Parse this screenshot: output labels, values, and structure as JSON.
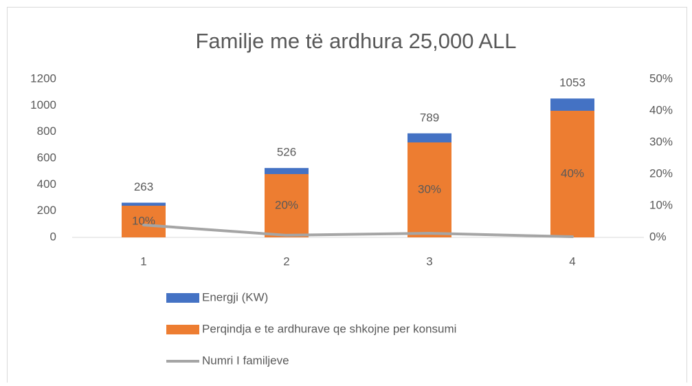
{
  "chart_data": {
    "type": "bar",
    "title": "Familje me të ardhura 25,000 ALL",
    "categories": [
      "1",
      "2",
      "3",
      "4"
    ],
    "series": [
      {
        "name": "Energji (KW)",
        "color": "#4472c4",
        "values": [
          263,
          526,
          789,
          1053
        ]
      },
      {
        "name": "Perqindja e te ardhurave qe shkojne per konsumi",
        "color": "#ed7d31",
        "axis": "y2",
        "values": [
          10,
          20,
          30,
          40
        ],
        "value_labels": [
          "10%",
          "20%",
          "30%",
          "40%"
        ]
      },
      {
        "name": "Numri I familjeve",
        "color": "#a5a5a5",
        "type": "line",
        "values": [
          94,
          16,
          31,
          5
        ]
      }
    ],
    "ylim": [
      0,
      1200
    ],
    "yticks": [
      0,
      200,
      400,
      600,
      800,
      1000,
      1200
    ],
    "y2lim": [
      0,
      50
    ],
    "y2ticks": [
      {
        "value": 0,
        "label": "0%"
      },
      {
        "value": 10,
        "label": "10%"
      },
      {
        "value": 20,
        "label": "20%"
      },
      {
        "value": 30,
        "label": "30%"
      },
      {
        "value": 40,
        "label": "40%"
      },
      {
        "value": 50,
        "label": "50%"
      }
    ],
    "legend": "bottom",
    "grid": false
  }
}
